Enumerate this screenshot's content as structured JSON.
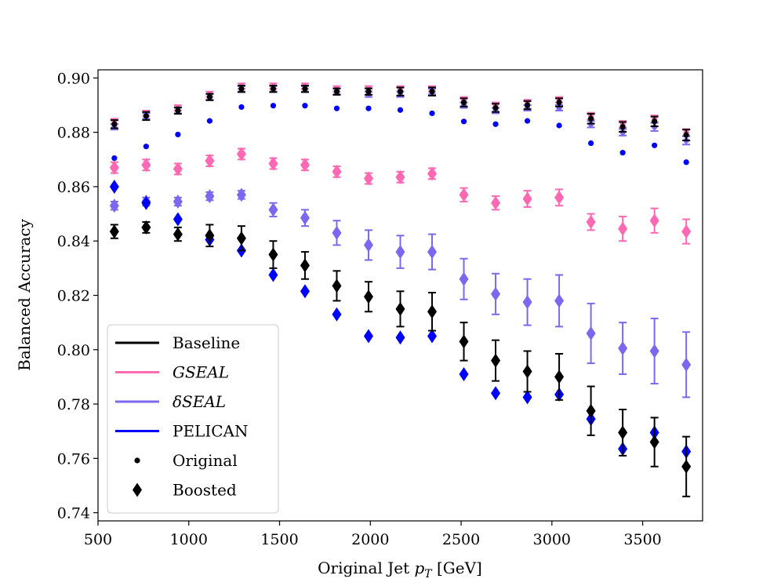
{
  "chart_data": {
    "type": "scatter",
    "title": "",
    "xlabel_prefix": "Original Jet ",
    "xlabel_var": "p",
    "xlabel_sub": "T",
    "xlabel_unit": " [GeV]",
    "ylabel": "Balanced Accuracy",
    "xlim": [
      500,
      3830
    ],
    "ylim": [
      0.737,
      0.903
    ],
    "xticks": [
      500,
      1000,
      1500,
      2000,
      2500,
      3000,
      3500
    ],
    "yticks": [
      0.74,
      0.76,
      0.78,
      0.8,
      0.82,
      0.84,
      0.86,
      0.88,
      0.9
    ],
    "xtick_labels": [
      "500",
      "1000",
      "1500",
      "2000",
      "2500",
      "3000",
      "3500"
    ],
    "ytick_labels": [
      "0.74",
      "0.76",
      "0.78",
      "0.80",
      "0.82",
      "0.84",
      "0.86",
      "0.88",
      "0.90"
    ],
    "x": [
      590,
      765,
      940,
      1115,
      1290,
      1465,
      1640,
      1815,
      1990,
      2165,
      2340,
      2515,
      2690,
      2865,
      3040,
      3215,
      3390,
      3565,
      3740
    ],
    "series": [
      {
        "name": "Baseline",
        "color": "#000000",
        "original": [
          0.883,
          0.886,
          0.888,
          0.893,
          0.896,
          0.896,
          0.896,
          0.895,
          0.895,
          0.895,
          0.895,
          0.891,
          0.889,
          0.89,
          0.891,
          0.885,
          0.882,
          0.884,
          0.879
        ],
        "original_err": [
          0.0015,
          0.0015,
          0.0012,
          0.0012,
          0.0012,
          0.0012,
          0.0012,
          0.0012,
          0.0012,
          0.0015,
          0.0015,
          0.0015,
          0.0015,
          0.0015,
          0.0015,
          0.0018,
          0.0018,
          0.0018,
          0.002
        ],
        "boosted": [
          0.8435,
          0.845,
          0.8425,
          0.842,
          0.841,
          0.835,
          0.831,
          0.8235,
          0.8195,
          0.815,
          0.814,
          0.803,
          0.796,
          0.792,
          0.79,
          0.7775,
          0.7695,
          0.766,
          0.757
        ],
        "boosted_err": [
          0.0025,
          0.002,
          0.0025,
          0.004,
          0.0045,
          0.005,
          0.005,
          0.0055,
          0.0055,
          0.0065,
          0.007,
          0.007,
          0.0075,
          0.0075,
          0.0085,
          0.009,
          0.0085,
          0.009,
          0.011
        ]
      },
      {
        "name": "GSEAL",
        "color": "#ff69b4",
        "original": [
          0.884,
          0.887,
          0.889,
          0.894,
          0.897,
          0.897,
          0.897,
          0.896,
          0.896,
          0.896,
          0.896,
          0.892,
          0.89,
          0.891,
          0.892,
          0.886,
          0.883,
          0.885,
          0.88
        ],
        "original_err": [
          0.001,
          0.001,
          0.001,
          0.001,
          0.001,
          0.001,
          0.001,
          0.001,
          0.001,
          0.001,
          0.001,
          0.001,
          0.001,
          0.001,
          0.001,
          0.0012,
          0.0012,
          0.0012,
          0.0012
        ],
        "boosted": [
          0.867,
          0.868,
          0.8665,
          0.8695,
          0.872,
          0.8685,
          0.868,
          0.8655,
          0.863,
          0.8635,
          0.8648,
          0.857,
          0.854,
          0.8555,
          0.856,
          0.847,
          0.8445,
          0.8475,
          0.8435
        ],
        "boosted_err": [
          0.002,
          0.002,
          0.002,
          0.002,
          0.002,
          0.002,
          0.002,
          0.002,
          0.002,
          0.002,
          0.002,
          0.0025,
          0.0025,
          0.003,
          0.003,
          0.003,
          0.0045,
          0.0045,
          0.0045
        ]
      },
      {
        "name": "δSEAL",
        "color": "#7b68ee",
        "original": [
          0.882,
          0.886,
          0.888,
          0.893,
          0.896,
          0.896,
          0.896,
          0.895,
          0.894,
          0.894,
          0.895,
          0.89,
          0.888,
          0.889,
          0.889,
          0.883,
          0.88,
          0.882,
          0.877
        ],
        "original_err": [
          0.001,
          0.001,
          0.001,
          0.001,
          0.001,
          0.001,
          0.001,
          0.001,
          0.001,
          0.001,
          0.001,
          0.001,
          0.001,
          0.001,
          0.001,
          0.0012,
          0.0012,
          0.0015,
          0.0015
        ],
        "boosted": [
          0.853,
          0.8545,
          0.8545,
          0.8565,
          0.857,
          0.8515,
          0.8485,
          0.843,
          0.8385,
          0.836,
          0.836,
          0.826,
          0.8205,
          0.8175,
          0.818,
          0.806,
          0.8005,
          0.7995,
          0.7945
        ],
        "boosted_err": [
          0.0015,
          0.0015,
          0.0015,
          0.0015,
          0.0015,
          0.0025,
          0.003,
          0.0045,
          0.0055,
          0.006,
          0.0065,
          0.0075,
          0.0075,
          0.0085,
          0.0095,
          0.011,
          0.0095,
          0.012,
          0.012
        ]
      },
      {
        "name": "PELICAN",
        "color": "#0000ff",
        "original": [
          0.8705,
          0.8748,
          0.8792,
          0.8842,
          0.8893,
          0.8898,
          0.8898,
          0.8888,
          0.8888,
          0.8882,
          0.887,
          0.884,
          0.883,
          0.8842,
          0.8825,
          0.876,
          0.8725,
          0.8752,
          0.869
        ],
        "original_err": [
          0,
          0,
          0,
          0,
          0,
          0,
          0,
          0,
          0,
          0,
          0,
          0,
          0,
          0,
          0,
          0,
          0,
          0,
          0
        ],
        "boosted": [
          0.86,
          0.854,
          0.848,
          0.8405,
          0.8365,
          0.8275,
          0.8215,
          0.813,
          0.805,
          0.8045,
          0.805,
          0.791,
          0.784,
          0.7825,
          0.7835,
          0.7745,
          0.7635,
          0.7695,
          0.7625
        ],
        "boosted_err": [
          0,
          0,
          0,
          0,
          0,
          0,
          0,
          0,
          0,
          0,
          0,
          0,
          0,
          0,
          0,
          0,
          0,
          0,
          0
        ]
      }
    ],
    "legend": {
      "placement": "lower-left",
      "entries": [
        {
          "label": "Baseline",
          "kind": "line",
          "color": "#000000",
          "italic": false
        },
        {
          "label": "GSEAL",
          "kind": "line",
          "color": "#ff69b4",
          "italic": true
        },
        {
          "label": "δSEAL",
          "kind": "line",
          "color": "#7b68ee",
          "italic": true
        },
        {
          "label": "PELICAN",
          "kind": "line",
          "color": "#0000ff",
          "italic": false
        },
        {
          "label": "Original",
          "kind": "dot",
          "color": "#000000",
          "italic": false
        },
        {
          "label": "Boosted",
          "kind": "diamond",
          "color": "#000000",
          "italic": false
        }
      ]
    }
  }
}
